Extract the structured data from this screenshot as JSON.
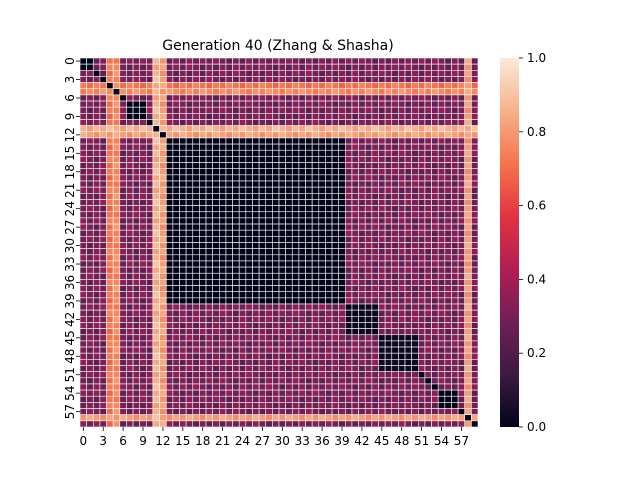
{
  "chart_data": {
    "type": "heatmap",
    "title": "Generation 40 (Zhang & Shasha)",
    "n": 60,
    "x_tick_labels": [
      "0",
      "3",
      "6",
      "9",
      "12",
      "15",
      "18",
      "21",
      "24",
      "27",
      "30",
      "33",
      "36",
      "39",
      "42",
      "45",
      "48",
      "51",
      "54",
      "57"
    ],
    "y_tick_labels": [
      "0",
      "3",
      "6",
      "9",
      "12",
      "15",
      "18",
      "21",
      "24",
      "27",
      "30",
      "33",
      "36",
      "39",
      "42",
      "45",
      "48",
      "51",
      "54",
      "57"
    ],
    "colorbar": {
      "min": 0.0,
      "max": 1.0,
      "tick_labels": [
        "0.0",
        "0.2",
        "0.4",
        "0.6",
        "0.8",
        "1.0"
      ],
      "colormap": "rocket",
      "colors": [
        "#03051a",
        "#3d1a43",
        "#701f57",
        "#b21e53",
        "#e13342",
        "#f6744c",
        "#f7b18a",
        "#faebdd"
      ]
    },
    "approximate_structure": {
      "clusters": [
        {
          "rows": "0-1",
          "value": 0.0
        },
        {
          "rows": "7-9",
          "value": 0.0
        },
        {
          "rows": "13-39",
          "value": 0.0
        },
        {
          "rows": "40-44",
          "value": 0.02
        },
        {
          "rows": "45-50",
          "value": 0.03
        },
        {
          "rows": "54-56",
          "value": 0.0
        }
      ],
      "bright_bands": [
        {
          "index": 4,
          "value": 0.75
        },
        {
          "index": 5,
          "value": 0.8
        },
        {
          "index": 11,
          "value": 0.9
        },
        {
          "index": 12,
          "value": 0.85
        },
        {
          "index": 58,
          "value": 0.85
        }
      ],
      "typical_off_diagonal_value": 0.3
    }
  }
}
